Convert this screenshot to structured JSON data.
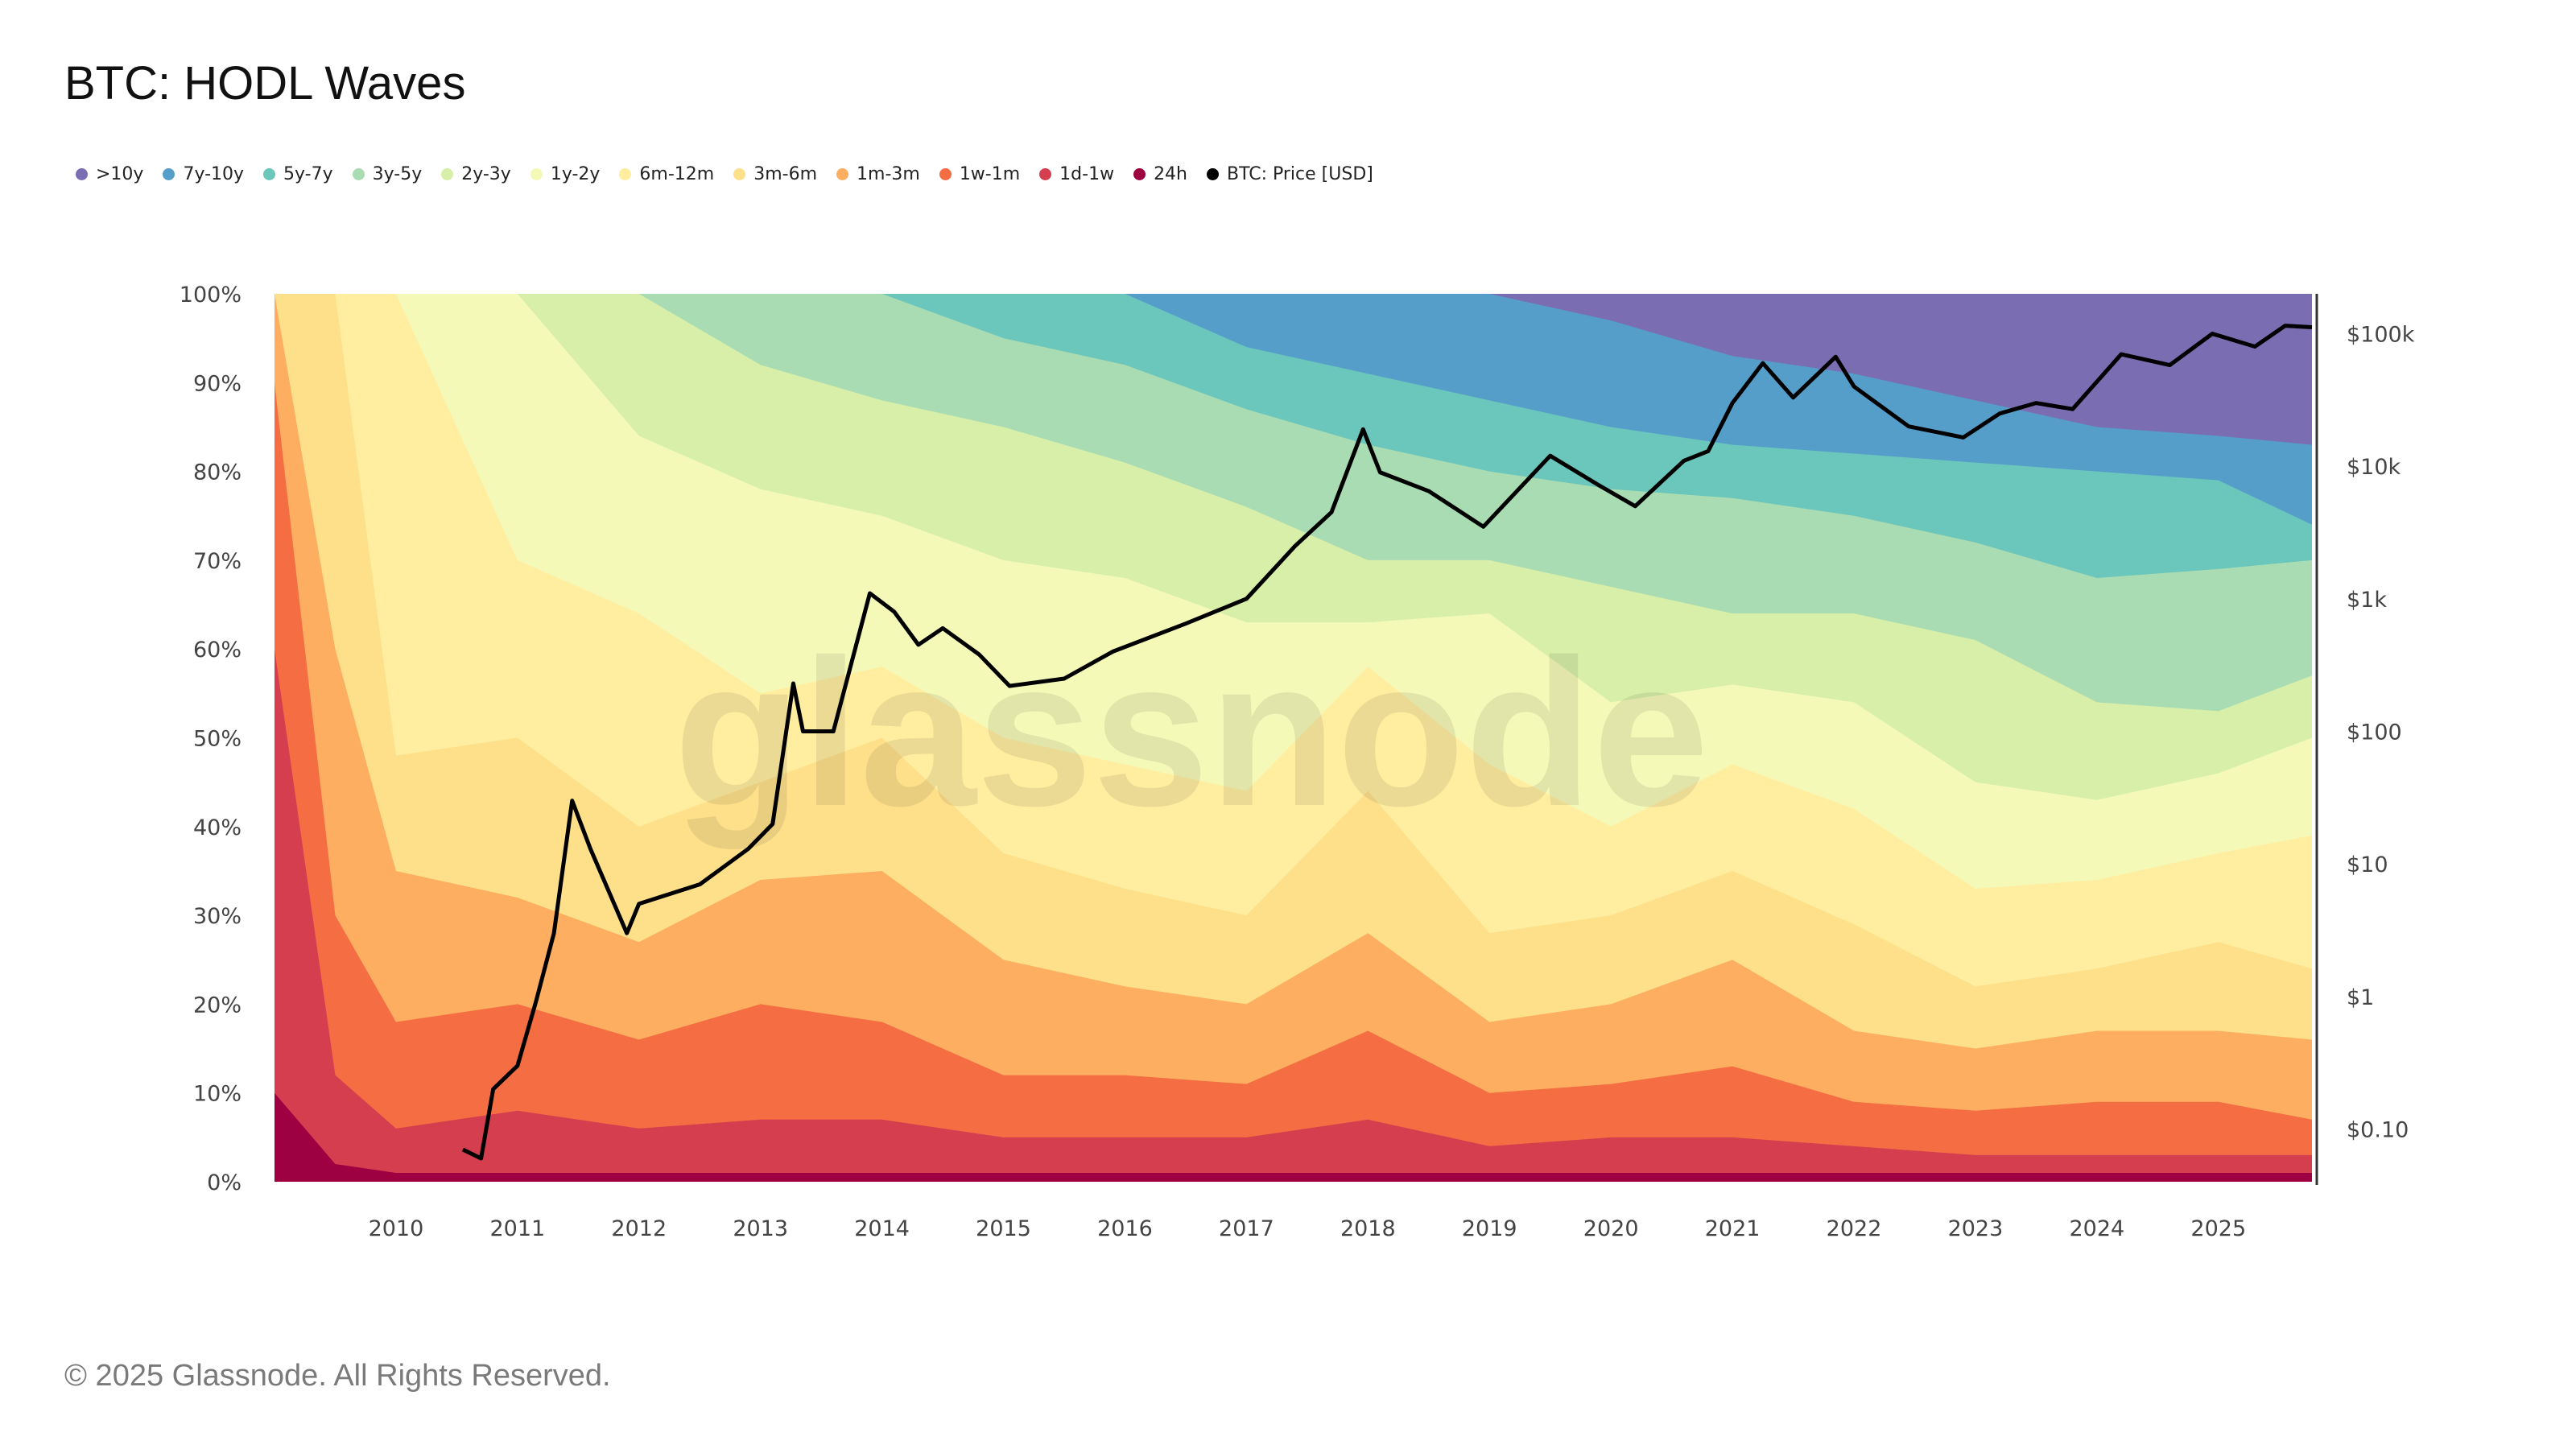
{
  "title": "BTC: HODL Waves",
  "footer": "© 2025 Glassnode. All Rights Reserved.",
  "watermark": "glassnode",
  "chart_data": {
    "type": "area",
    "stacked": true,
    "title": "BTC: HODL Waves",
    "x": [
      2009,
      2009.5,
      2010,
      2011,
      2012,
      2013,
      2014,
      2015,
      2016,
      2017,
      2018,
      2019,
      2020,
      2021,
      2022,
      2023,
      2024,
      2025,
      2025.8
    ],
    "xlim": [
      2009,
      2025.77
    ],
    "x_ticks": [
      "2010",
      "2011",
      "2012",
      "2013",
      "2014",
      "2015",
      "2016",
      "2017",
      "2018",
      "2019",
      "2020",
      "2021",
      "2022",
      "2023",
      "2024",
      "2025"
    ],
    "y_left": {
      "ylim": [
        0,
        100
      ],
      "ticks": [
        "0%",
        "10%",
        "20%",
        "30%",
        "40%",
        "50%",
        "60%",
        "70%",
        "80%",
        "90%",
        "100%"
      ]
    },
    "y_right": {
      "scale": "log",
      "ylim": [
        0.04,
        200000
      ],
      "ticks": [
        {
          "value": 100000,
          "label": "$100k"
        },
        {
          "value": 10000,
          "label": "$10k"
        },
        {
          "value": 1000,
          "label": "$1k"
        },
        {
          "value": 100,
          "label": "$100"
        },
        {
          "value": 10,
          "label": "$10"
        },
        {
          "value": 1,
          "label": "$1"
        },
        {
          "value": 0.1,
          "label": "$0.10"
        }
      ]
    },
    "legend_position": "top-left",
    "series_note": "band values are cumulative upper boundaries (%) stacked from bottom",
    "series": [
      {
        "name": "24h",
        "color": "#9e0142",
        "cumulative_top": [
          10,
          2,
          1,
          1,
          1,
          1,
          1,
          1,
          1,
          1,
          1,
          1,
          1,
          1,
          1,
          1,
          1,
          1,
          1
        ]
      },
      {
        "name": "1d-1w",
        "color": "#d53e4f",
        "cumulative_top": [
          60,
          12,
          6,
          8,
          6,
          7,
          7,
          5,
          5,
          5,
          7,
          4,
          5,
          5,
          4,
          3,
          3,
          3,
          3
        ]
      },
      {
        "name": "1w-1m",
        "color": "#f46d43",
        "cumulative_top": [
          90,
          30,
          18,
          20,
          16,
          20,
          18,
          12,
          12,
          11,
          17,
          10,
          11,
          13,
          9,
          8,
          9,
          9,
          7
        ]
      },
      {
        "name": "1m-3m",
        "color": "#fdae61",
        "cumulative_top": [
          100,
          60,
          35,
          32,
          27,
          34,
          35,
          25,
          22,
          20,
          28,
          18,
          20,
          25,
          17,
          15,
          17,
          17,
          16
        ]
      },
      {
        "name": "3m-6m",
        "color": "#fee08b",
        "cumulative_top": [
          100,
          100,
          48,
          50,
          40,
          45,
          50,
          37,
          33,
          30,
          44,
          28,
          30,
          35,
          29,
          22,
          24,
          27,
          24
        ]
      },
      {
        "name": "6m-12m",
        "color": "#ffeda0",
        "cumulative_top": [
          100,
          100,
          100,
          70,
          64,
          55,
          58,
          50,
          47,
          44,
          58,
          47,
          40,
          47,
          42,
          33,
          34,
          37,
          39
        ]
      },
      {
        "name": "1y-2y",
        "color": "#f5f9b8",
        "cumulative_top": [
          100,
          100,
          100,
          100,
          84,
          78,
          75,
          70,
          68,
          63,
          63,
          64,
          54,
          56,
          54,
          45,
          43,
          46,
          50
        ]
      },
      {
        "name": "2y-3y",
        "color": "#d7efa9",
        "cumulative_top": [
          100,
          100,
          100,
          100,
          100,
          92,
          88,
          85,
          81,
          76,
          70,
          70,
          67,
          64,
          64,
          61,
          54,
          53,
          57
        ]
      },
      {
        "name": "3y-5y",
        "color": "#aadcb3",
        "cumulative_top": [
          100,
          100,
          100,
          100,
          100,
          100,
          100,
          95,
          92,
          87,
          83,
          80,
          78,
          77,
          75,
          72,
          68,
          69,
          70
        ]
      },
      {
        "name": "5y-7y",
        "color": "#6bc6bc",
        "cumulative_top": [
          100,
          100,
          100,
          100,
          100,
          100,
          100,
          100,
          100,
          94,
          91,
          88,
          85,
          83,
          82,
          81,
          80,
          79,
          74
        ]
      },
      {
        "name": "7y-10y",
        "color": "#559ec9",
        "cumulative_top": [
          100,
          100,
          100,
          100,
          100,
          100,
          100,
          100,
          100,
          100,
          100,
          100,
          97,
          93,
          91,
          88,
          85,
          84,
          83
        ]
      },
      {
        "name": ">10y",
        "color": "#7b6db2",
        "cumulative_top": [
          100,
          100,
          100,
          100,
          100,
          100,
          100,
          100,
          100,
          100,
          100,
          100,
          100,
          100,
          100,
          100,
          100,
          100,
          100
        ]
      }
    ],
    "price": {
      "name": "BTC: Price [USD]",
      "color": "#000000",
      "points": [
        [
          2010.55,
          0.07
        ],
        [
          2010.7,
          0.06
        ],
        [
          2010.8,
          0.2
        ],
        [
          2011.0,
          0.3
        ],
        [
          2011.15,
          0.9
        ],
        [
          2011.3,
          3
        ],
        [
          2011.45,
          30
        ],
        [
          2011.6,
          13
        ],
        [
          2011.9,
          3
        ],
        [
          2012.0,
          5
        ],
        [
          2012.5,
          7
        ],
        [
          2012.9,
          13
        ],
        [
          2013.1,
          20
        ],
        [
          2013.27,
          230
        ],
        [
          2013.35,
          100
        ],
        [
          2013.6,
          100
        ],
        [
          2013.9,
          1100
        ],
        [
          2014.1,
          800
        ],
        [
          2014.3,
          450
        ],
        [
          2014.5,
          600
        ],
        [
          2014.8,
          380
        ],
        [
          2015.05,
          220
        ],
        [
          2015.5,
          250
        ],
        [
          2015.9,
          400
        ],
        [
          2016.5,
          650
        ],
        [
          2017.0,
          1000
        ],
        [
          2017.4,
          2500
        ],
        [
          2017.7,
          4500
        ],
        [
          2017.96,
          19000
        ],
        [
          2018.1,
          9000
        ],
        [
          2018.5,
          6500
        ],
        [
          2018.95,
          3500
        ],
        [
          2019.5,
          12000
        ],
        [
          2019.9,
          7200
        ],
        [
          2020.2,
          5000
        ],
        [
          2020.6,
          11000
        ],
        [
          2020.8,
          13000
        ],
        [
          2021.0,
          30000
        ],
        [
          2021.25,
          60000
        ],
        [
          2021.5,
          33000
        ],
        [
          2021.85,
          67000
        ],
        [
          2022.0,
          40000
        ],
        [
          2022.45,
          20000
        ],
        [
          2022.9,
          16500
        ],
        [
          2023.2,
          25000
        ],
        [
          2023.5,
          30000
        ],
        [
          2023.8,
          27000
        ],
        [
          2024.2,
          70000
        ],
        [
          2024.6,
          58000
        ],
        [
          2024.95,
          100000
        ],
        [
          2025.3,
          80000
        ],
        [
          2025.55,
          115000
        ],
        [
          2025.8,
          112000
        ]
      ]
    }
  }
}
